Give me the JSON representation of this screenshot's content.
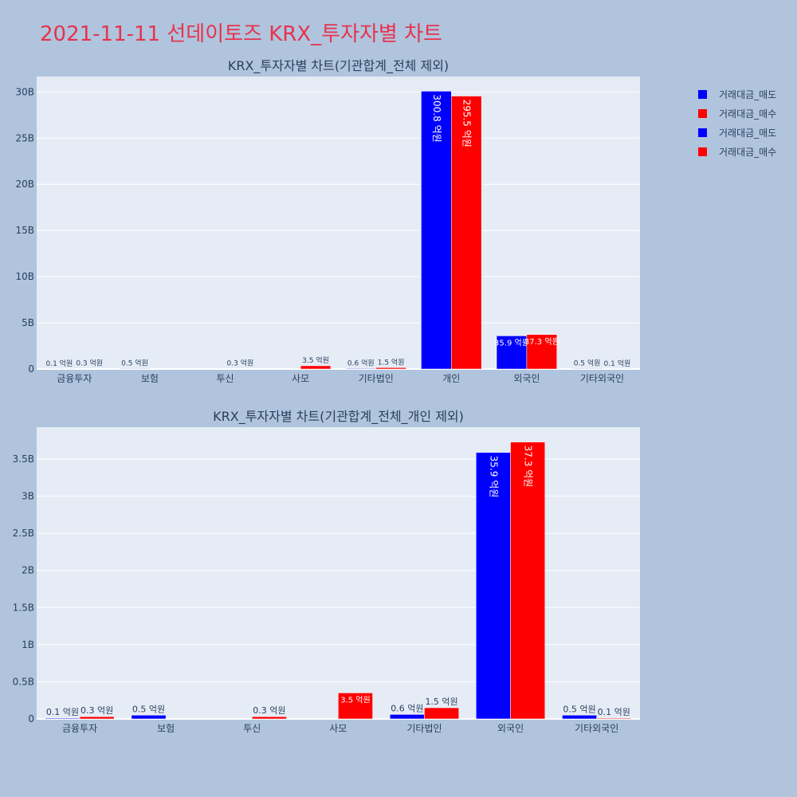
{
  "page": {
    "title": "2021-11-11 선데이토즈 KRX_투자자별 차트"
  },
  "colors": {
    "sell": "#0000ff",
    "buy": "#ff0000",
    "plot_bg": "#e5ecf6",
    "paper_bg": "#b0c4de",
    "axis_text": "#2a3f5f"
  },
  "legend": {
    "items": [
      {
        "label": "거래대금_매도",
        "color": "#0000ff"
      },
      {
        "label": "거래대금_매수",
        "color": "#ff0000"
      },
      {
        "label": "거래대금_매도",
        "color": "#0000ff"
      },
      {
        "label": "거래대금_매수",
        "color": "#ff0000"
      }
    ]
  },
  "chart_data": [
    {
      "type": "bar",
      "title": "KRX_투자자별 차트(기관합계_전체 제외)",
      "categories": [
        "금융투자",
        "보험",
        "투신",
        "사모",
        "기타법인",
        "개인",
        "외국인",
        "기타외국인"
      ],
      "series": [
        {
          "name": "거래대금_매도",
          "color": "#0000ff",
          "values": [
            10000000,
            50000000,
            0,
            0,
            60000000,
            30080000000,
            3590000000,
            50000000
          ],
          "labels": [
            "0.1 억원",
            "0.5 억원",
            "",
            "",
            "0.6 억원",
            "300.8 억원",
            "35.9 억원",
            "0.5 억원"
          ]
        },
        {
          "name": "거래대금_매수",
          "color": "#ff0000",
          "values": [
            30000000,
            0,
            30000000,
            350000000,
            150000000,
            29550000000,
            3730000000,
            10000000
          ],
          "labels": [
            "0.3 억원",
            "",
            "0.3 억원",
            "3.5 억원",
            "1.5 억원",
            "295.5 억원",
            "37.3 억원",
            "0.1 억원"
          ]
        }
      ],
      "yticks": [
        0,
        5000000000,
        10000000000,
        15000000000,
        20000000000,
        25000000000,
        30000000000
      ],
      "ytick_labels": [
        "0",
        "5B",
        "10B",
        "15B",
        "20B",
        "25B",
        "30B"
      ],
      "ylim": [
        0,
        31670000000
      ]
    },
    {
      "type": "bar",
      "title": "KRX_투자자별 차트(기관합계_전체_개인 제외)",
      "categories": [
        "금융투자",
        "보험",
        "투신",
        "사모",
        "기타법인",
        "외국인",
        "기타외국인"
      ],
      "series": [
        {
          "name": "거래대금_매도",
          "color": "#0000ff",
          "values": [
            10000000,
            50000000,
            0,
            0,
            60000000,
            3590000000,
            50000000
          ],
          "labels": [
            "0.1 억원",
            "0.5 억원",
            "",
            "",
            "0.6 억원",
            "35.9 억원",
            "0.5 억원"
          ]
        },
        {
          "name": "거래대금_매수",
          "color": "#ff0000",
          "values": [
            30000000,
            0,
            30000000,
            350000000,
            150000000,
            3730000000,
            10000000
          ],
          "labels": [
            "0.3 억원",
            "",
            "0.3 억원",
            "3.5 억원",
            "1.5 억원",
            "37.3 억원",
            "0.1 억원"
          ]
        }
      ],
      "yticks": [
        0,
        500000000,
        1000000000,
        1500000000,
        2000000000,
        2500000000,
        3000000000,
        3500000000
      ],
      "ytick_labels": [
        "0",
        "0.5B",
        "1B",
        "1.5B",
        "2B",
        "2.5B",
        "3B",
        "3.5B"
      ],
      "ylim": [
        0,
        3930000000
      ]
    }
  ]
}
